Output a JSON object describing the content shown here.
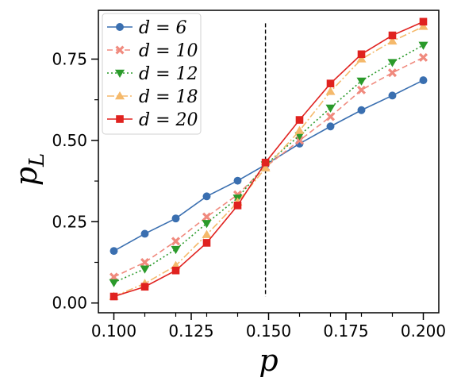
{
  "chart_data": {
    "type": "line",
    "xlabel": "p",
    "ylabel": "p_L",
    "xlim": [
      0.095,
      0.205
    ],
    "ylim": [
      -0.03,
      0.9
    ],
    "xticks": [
      0.1,
      0.125,
      0.15,
      0.175,
      0.2
    ],
    "xtick_labels": [
      "0.100",
      "0.125",
      "0.150",
      "0.175",
      "0.200"
    ],
    "xminor": [
      0.11,
      0.12,
      0.13,
      0.14,
      0.16,
      0.17,
      0.18,
      0.19
    ],
    "yticks": [
      0.0,
      0.25,
      0.5,
      0.75
    ],
    "ytick_labels": [
      "0.00",
      "0.25",
      "0.50",
      "0.75"
    ],
    "yminor": [
      0.125,
      0.375,
      0.625
    ],
    "grid": false,
    "legend_position": "top-left",
    "threshold_line": {
      "x": 0.149,
      "y_from": 0.02,
      "y_to": 0.86,
      "color": "#000000",
      "style": "dashed"
    },
    "x": [
      0.1,
      0.11,
      0.12,
      0.13,
      0.14,
      0.149,
      0.16,
      0.17,
      0.18,
      0.19,
      0.2
    ],
    "series": [
      {
        "name": "d = 6",
        "color": "#3a6fb0",
        "dash": "",
        "marker": "circle",
        "values": [
          0.16,
          0.213,
          0.26,
          0.328,
          0.376,
          0.425,
          0.49,
          0.543,
          0.593,
          0.638,
          0.685
        ]
      },
      {
        "name": "d = 10",
        "color": "#f08a7e",
        "dash": "7,4",
        "marker": "x",
        "values": [
          0.08,
          0.125,
          0.19,
          0.265,
          0.333,
          0.418,
          0.5,
          0.573,
          0.655,
          0.708,
          0.755
        ]
      },
      {
        "name": "d = 12",
        "color": "#2a9a2a",
        "dash": "2,3",
        "marker": "triangle-down",
        "values": [
          0.063,
          0.105,
          0.165,
          0.245,
          0.323,
          0.425,
          0.515,
          0.6,
          0.683,
          0.74,
          0.793
        ]
      },
      {
        "name": "d = 18",
        "color": "#f5b96b",
        "dash": "9,3,2,3",
        "marker": "triangle-up",
        "values": [
          0.02,
          0.06,
          0.115,
          0.21,
          0.31,
          0.415,
          0.53,
          0.65,
          0.75,
          0.805,
          0.85
        ]
      },
      {
        "name": "d = 20",
        "color": "#e0221f",
        "dash": "",
        "marker": "square",
        "values": [
          0.02,
          0.05,
          0.1,
          0.185,
          0.3,
          0.432,
          0.563,
          0.675,
          0.765,
          0.823,
          0.865
        ]
      }
    ]
  }
}
